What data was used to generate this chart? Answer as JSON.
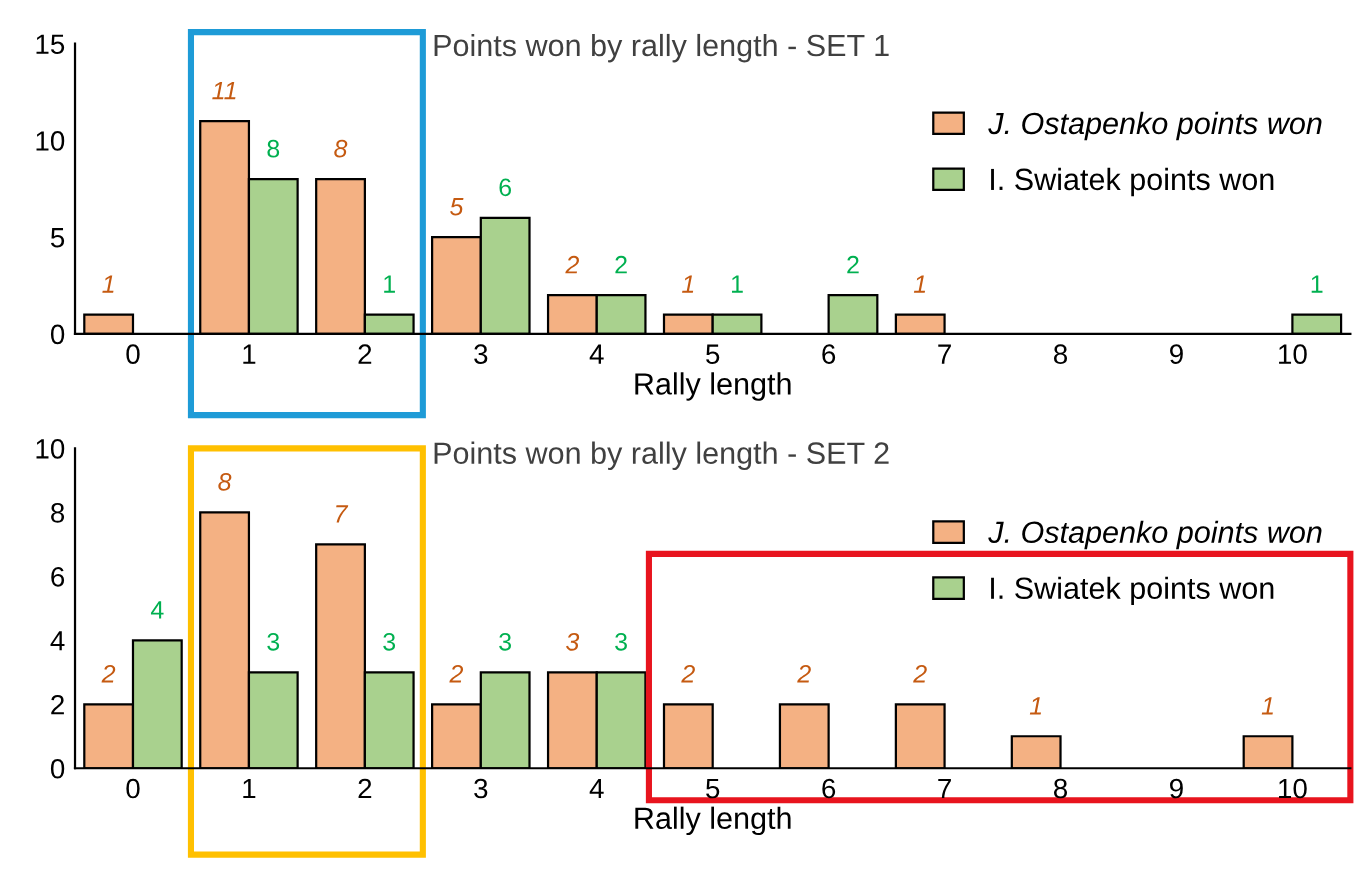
{
  "chart_data": [
    {
      "type": "bar",
      "title": "Points won by rally length - SET 1",
      "xlabel": "Rally length",
      "categories": [
        "0",
        "1",
        "2",
        "3",
        "4",
        "5",
        "6",
        "7",
        "8",
        "9",
        "10"
      ],
      "series": [
        {
          "name": "J. Ostapenko points won",
          "color": "#f4b183",
          "values": [
            1,
            11,
            8,
            5,
            2,
            1,
            null,
            1,
            null,
            null,
            null
          ]
        },
        {
          "name": "I. Swiatek points won",
          "color": "#a9d18e",
          "values": [
            null,
            8,
            1,
            6,
            2,
            1,
            2,
            null,
            null,
            null,
            1
          ]
        }
      ],
      "ylim": [
        0,
        15
      ],
      "yticks": [
        0,
        5,
        10,
        15
      ],
      "grid": false,
      "legend": "top right",
      "data_labels": true
    },
    {
      "type": "bar",
      "title": "Points won by rally length - SET 2",
      "xlabel": "Rally length",
      "categories": [
        "0",
        "1",
        "2",
        "3",
        "4",
        "5",
        "6",
        "7",
        "8",
        "9",
        "10"
      ],
      "series": [
        {
          "name": "J. Ostapenko points won",
          "color": "#f4b183",
          "values": [
            2,
            8,
            7,
            2,
            3,
            2,
            2,
            2,
            1,
            null,
            1
          ]
        },
        {
          "name": "I. Swiatek points won",
          "color": "#a9d18e",
          "values": [
            4,
            3,
            3,
            3,
            3,
            null,
            null,
            null,
            null,
            null,
            null
          ]
        }
      ],
      "ylim": [
        0,
        10
      ],
      "yticks": [
        0,
        2,
        4,
        6,
        8,
        10
      ],
      "grid": false,
      "legend": "top right",
      "data_labels": true
    }
  ]
}
